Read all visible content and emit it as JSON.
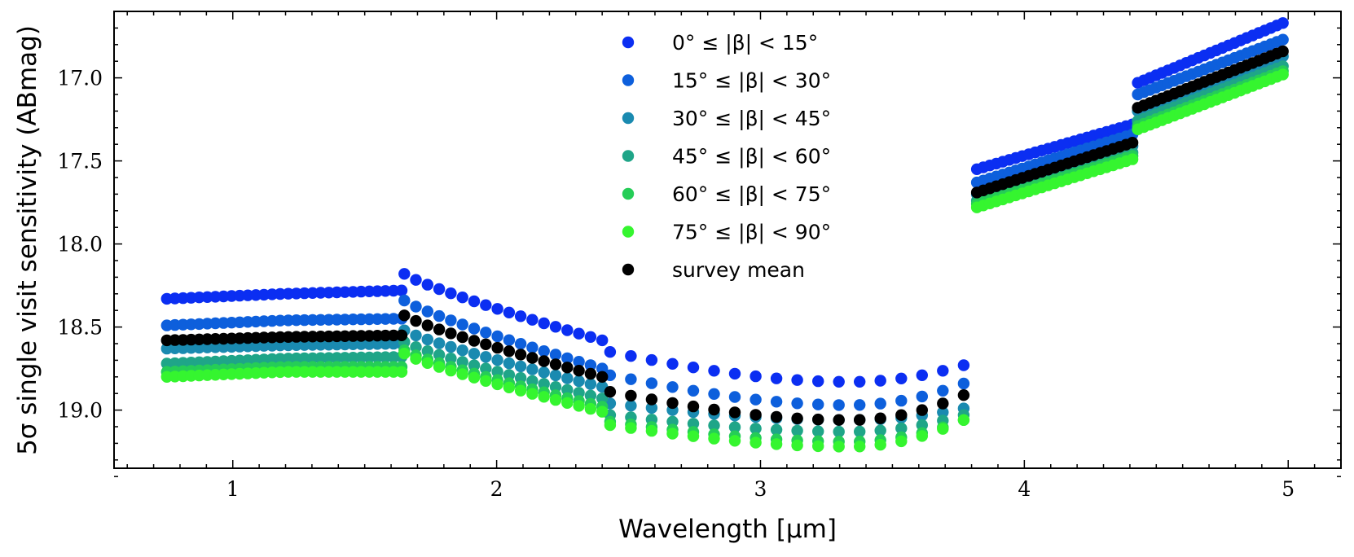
{
  "chart_data": {
    "type": "scatter",
    "xlabel": "Wavelength [μm]",
    "ylabel": "5σ single visit sensitivity (ABmag)",
    "xlim": [
      0.55,
      5.2
    ],
    "ylim": [
      19.35,
      16.6
    ],
    "y_inverted": true,
    "x_ticks": [
      1,
      2,
      3,
      4,
      5
    ],
    "x_tick_labels": [
      "1",
      "2",
      "3",
      "4",
      "5"
    ],
    "y_ticks": [
      17.0,
      17.5,
      18.0,
      18.5,
      19.0
    ],
    "y_tick_labels": [
      "17.0",
      "17.5",
      "18.0",
      "18.5",
      "19.0"
    ],
    "legend_position": "upper-center",
    "segments": [
      {
        "band": 1,
        "x_start": 0.75,
        "x_end": 1.64,
        "n": 30
      },
      {
        "band": 2,
        "x_start": 1.65,
        "x_end": 2.4,
        "n": 18
      },
      {
        "band": 3,
        "x_start": 2.43,
        "x_end": 3.77,
        "n": 18
      },
      {
        "band": 4,
        "x_start": 3.82,
        "x_end": 4.41,
        "n": 25
      },
      {
        "band": 5,
        "x_start": 4.43,
        "x_end": 4.98,
        "n": 25
      }
    ],
    "series": [
      {
        "name": "0° ≤ |β| < 15°",
        "color": "#0b2ef2",
        "band1": [
          18.33,
          18.3,
          18.28
        ],
        "band2": [
          18.18,
          18.58
        ],
        "band3": [
          18.65,
          18.83,
          18.73
        ],
        "band4": [
          17.55,
          17.28
        ],
        "band5": [
          17.03,
          16.67
        ]
      },
      {
        "name": "15° ≤ |β| < 30°",
        "color": "#0d5fdc",
        "band1": [
          18.49,
          18.46,
          18.45
        ],
        "band2": [
          18.34,
          18.75
        ],
        "band3": [
          18.79,
          18.97,
          18.84
        ],
        "band4": [
          17.63,
          17.34
        ],
        "band5": [
          17.1,
          16.77
        ]
      },
      {
        "name": "30° ≤ |β| < 45°",
        "color": "#1a8ab0",
        "band1": [
          18.63,
          18.61,
          18.6
        ],
        "band2": [
          18.52,
          18.86
        ],
        "band3": [
          18.96,
          19.06,
          18.99
        ],
        "band4": [
          17.7,
          17.41
        ],
        "band5": [
          17.2,
          16.87
        ]
      },
      {
        "name": "45° ≤ |β| < 60°",
        "color": "#1fa588",
        "band1": [
          18.72,
          18.69,
          18.68
        ],
        "band2": [
          18.59,
          18.93
        ],
        "band3": [
          19.03,
          19.13,
          19.03
        ],
        "band4": [
          17.74,
          17.45
        ],
        "band5": [
          17.26,
          16.93
        ]
      },
      {
        "name": "60° ≤ |β| < 75°",
        "color": "#25cd57",
        "band1": [
          18.77,
          18.74,
          18.74
        ],
        "band2": [
          18.64,
          18.98
        ],
        "band3": [
          19.07,
          19.19,
          19.06
        ],
        "band4": [
          17.76,
          17.47
        ],
        "band5": [
          17.29,
          16.96
        ]
      },
      {
        "name": "75° ≤ |β| < 90°",
        "color": "#35f52f",
        "band1": [
          18.8,
          18.77,
          18.77
        ],
        "band2": [
          18.66,
          19.01
        ],
        "band3": [
          19.09,
          19.22,
          19.06
        ],
        "band4": [
          17.78,
          17.49
        ],
        "band5": [
          17.31,
          16.98
        ]
      },
      {
        "name": "survey mean",
        "color": "#000000",
        "band1": [
          18.58,
          18.56,
          18.55
        ],
        "band2": [
          18.43,
          18.8
        ],
        "band3": [
          18.89,
          19.06,
          18.91
        ],
        "band4": [
          17.69,
          17.39
        ],
        "band5": [
          17.18,
          16.84
        ]
      }
    ]
  }
}
